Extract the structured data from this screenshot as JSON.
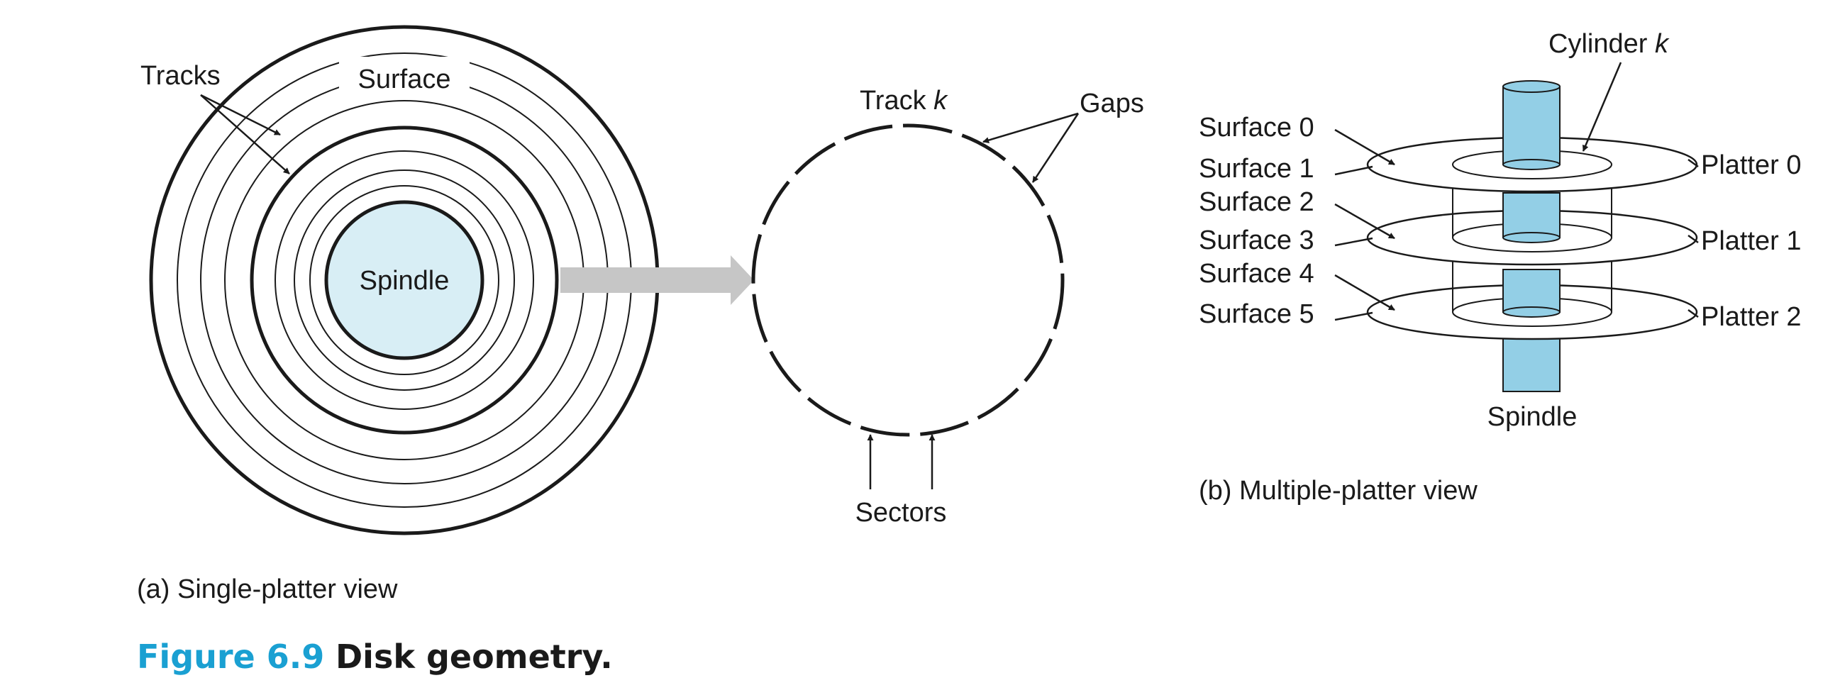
{
  "single_platter": {
    "tracks_label": "Tracks",
    "surface_label": "Surface",
    "spindle_label": "Spindle",
    "caption": "(a) Single-platter view"
  },
  "track_detail": {
    "track_label": "Track ",
    "track_var": "k",
    "gaps_label": "Gaps",
    "sectors_label": "Sectors"
  },
  "multi_platter": {
    "cylinder_label": "Cylinder ",
    "cylinder_var": "k",
    "surfaces": [
      "Surface 0",
      "Surface 1",
      "Surface 2",
      "Surface 3",
      "Surface 4",
      "Surface 5"
    ],
    "platters": [
      "Platter 0",
      "Platter 1",
      "Platter 2"
    ],
    "spindle_label": "Spindle",
    "caption": "(b) Multiple-platter view"
  },
  "figure": {
    "number": "Figure 6.9",
    "title": "Disk geometry."
  },
  "colors": {
    "spindle_fill": "#d8eef5",
    "cylinder_fill": "#93cfe6",
    "arrow_gray": "#c6c6c6",
    "figure_number": "#1aa0d2"
  }
}
